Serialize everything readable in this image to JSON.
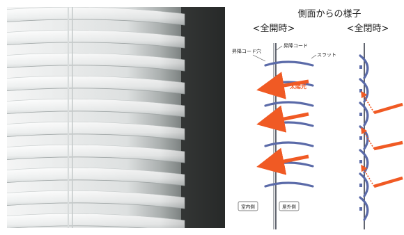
{
  "diagram": {
    "title": "側面からの様子",
    "left_panel": {
      "heading": "<全開時>",
      "label_cord_hole": "昇降コード穴",
      "label_cord": "昇降コード",
      "label_slat": "スラット",
      "label_sunlight": "太陽光",
      "label_indoor": "室内側",
      "label_outdoor": "屋外側"
    },
    "right_panel": {
      "heading": "<全閉時>"
    }
  },
  "colors": {
    "slat": "#5a6aa8",
    "cord": "#2e3440",
    "sunlight_arrow": "#f05a24",
    "photo_background": "#3c3f3e",
    "photo_slat": "#f2f4f4"
  }
}
